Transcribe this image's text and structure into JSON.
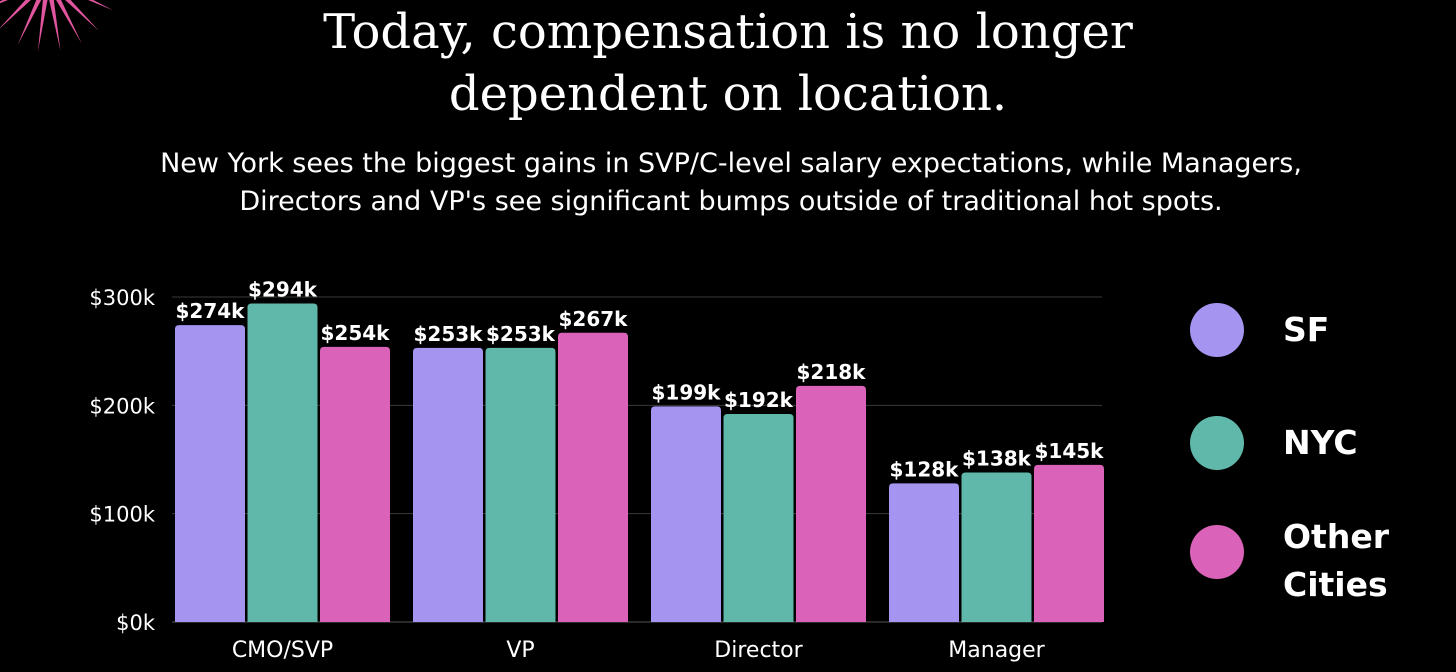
{
  "header": {
    "title_line1": "Today, compensation is no longer",
    "title_line2": "dependent on location.",
    "subtitle_line1": "New York sees the biggest gains in SVP/C-level salary expectations, while Managers,",
    "subtitle_line2": "Directors and VP's see significant bumps outside of traditional hot spots."
  },
  "legend": {
    "sf": "SF",
    "nyc": "NYC",
    "other_line1": "Other",
    "other_line2": "Cities"
  },
  "colors": {
    "background": "#000000",
    "sf": "#A594F0",
    "nyc": "#5FB8AA",
    "other": "#DA63B9",
    "accent_burst": "#E0559E",
    "grid": "#3a3a3a"
  },
  "chart_data": {
    "type": "bar",
    "title": "",
    "xlabel": "",
    "ylabel": "",
    "categories": [
      "CMO/SVP",
      "VP",
      "Director",
      "Manager"
    ],
    "series": [
      {
        "name": "SF",
        "values": [
          274,
          253,
          199,
          128
        ],
        "labels": [
          "$274k",
          "$253k",
          "$199k",
          "$128k"
        ]
      },
      {
        "name": "NYC",
        "values": [
          294,
          253,
          192,
          138
        ],
        "labels": [
          "$294k",
          "$253k",
          "$192k",
          "$138k"
        ]
      },
      {
        "name": "Other Cities",
        "values": [
          254,
          267,
          218,
          145
        ],
        "labels": [
          "$254k",
          "$267k",
          "$218k",
          "$145k"
        ]
      }
    ],
    "ylim": [
      0,
      300
    ],
    "yticks": [
      0,
      100,
      200,
      300
    ],
    "ytick_labels": [
      "$0k",
      "$100k",
      "$200k",
      "$300k"
    ],
    "grid": true,
    "legend_position": "right"
  }
}
